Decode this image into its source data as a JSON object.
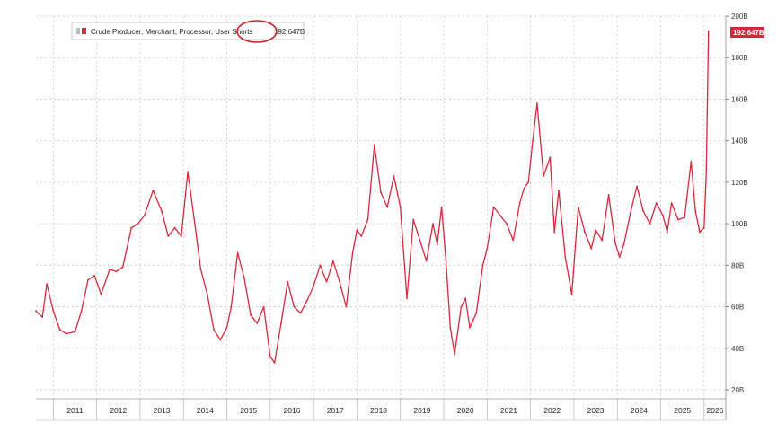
{
  "chart_data": {
    "type": "line",
    "title": "",
    "xlabel": "",
    "ylabel": "",
    "ylim": [
      20,
      200
    ],
    "xlim": [
      2010.6,
      2026.5
    ],
    "y_ticks": [
      20,
      40,
      60,
      80,
      100,
      120,
      140,
      160,
      180,
      200
    ],
    "y_tick_labels": [
      "20B",
      "40B",
      "60B",
      "80B",
      "100B",
      "120B",
      "140B",
      "160B",
      "180B",
      "200B"
    ],
    "x_tick_labels": [
      "2011",
      "2012",
      "2013",
      "2014",
      "2015",
      "2016",
      "2017",
      "2018",
      "2019",
      "2020",
      "2021",
      "2022",
      "2023",
      "2024",
      "2025",
      "2026"
    ],
    "grid": true,
    "legend_position": "top-left",
    "legend_label": "Crude Producer, Merchant, Processor, User Shorts",
    "legend_value": "192.647B",
    "last_value_label": "192.647B",
    "annotation": "red circle around the word Shorts in the legend",
    "colors": {
      "series": "#d6283c",
      "grid": "#c8c8c8",
      "flag": "#d6283c"
    },
    "series": [
      {
        "name": "Crude Producer, Merchant, Processor, User Shorts",
        "x": [
          2010.6,
          2010.75,
          2010.85,
          2011.0,
          2011.15,
          2011.3,
          2011.5,
          2011.65,
          2011.8,
          2011.95,
          2012.1,
          2012.3,
          2012.45,
          2012.6,
          2012.8,
          2012.95,
          2013.1,
          2013.3,
          2013.5,
          2013.65,
          2013.8,
          2013.95,
          2014.1,
          2014.3,
          2014.4,
          2014.55,
          2014.7,
          2014.85,
          2015.0,
          2015.1,
          2015.25,
          2015.4,
          2015.55,
          2015.7,
          2015.85,
          2016.0,
          2016.1,
          2016.25,
          2016.4,
          2016.55,
          2016.7,
          2016.85,
          2017.0,
          2017.15,
          2017.3,
          2017.45,
          2017.6,
          2017.75,
          2017.9,
          2018.0,
          2018.1,
          2018.25,
          2018.4,
          2018.55,
          2018.7,
          2018.85,
          2019.0,
          2019.15,
          2019.3,
          2019.45,
          2019.6,
          2019.75,
          2019.85,
          2019.95,
          2020.05,
          2020.15,
          2020.25,
          2020.4,
          2020.5,
          2020.6,
          2020.75,
          2020.9,
          2021.0,
          2021.15,
          2021.3,
          2021.45,
          2021.6,
          2021.75,
          2021.85,
          2021.95,
          2022.05,
          2022.15,
          2022.3,
          2022.45,
          2022.55,
          2022.65,
          2022.8,
          2022.95,
          2023.1,
          2023.25,
          2023.4,
          2023.5,
          2023.65,
          2023.8,
          2023.95,
          2024.05,
          2024.15,
          2024.3,
          2024.45,
          2024.6,
          2024.75,
          2024.9,
          2025.05,
          2025.15,
          2025.25,
          2025.4,
          2025.55,
          2025.7,
          2025.8,
          2025.9,
          2026.0,
          2026.05,
          2026.1
        ],
        "values": [
          58,
          55,
          71,
          58,
          49,
          47,
          48,
          58,
          73,
          75,
          66,
          78,
          77,
          79,
          98,
          100,
          104,
          116,
          106,
          94,
          98,
          94,
          125,
          94,
          78,
          66,
          49,
          44,
          50,
          60,
          86,
          74,
          56,
          52,
          60,
          36,
          33,
          52,
          72,
          60,
          57,
          63,
          70,
          80,
          72,
          82,
          72,
          60,
          86,
          97,
          94,
          102,
          138,
          115,
          108,
          123,
          108,
          64,
          102,
          92,
          82,
          100,
          90,
          108,
          82,
          50,
          37,
          60,
          64,
          50,
          57,
          80,
          88,
          108,
          104,
          100,
          92,
          110,
          117,
          120,
          140,
          158,
          123,
          132,
          96,
          116,
          84,
          66,
          108,
          96,
          88,
          97,
          92,
          114,
          91,
          84,
          90,
          105,
          118,
          106,
          100,
          110,
          104,
          96,
          110,
          102,
          103,
          130,
          106,
          96,
          98,
          125,
          192.647
        ]
      }
    ]
  }
}
